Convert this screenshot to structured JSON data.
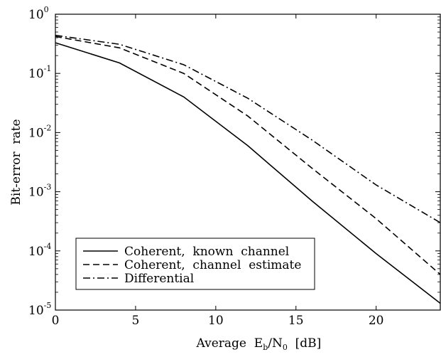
{
  "chart_data": {
    "type": "line",
    "xlabel": {
      "main": "Average  E",
      "sub1": "b",
      "mid": "/N",
      "sub2": "0",
      "end": "  [dB]"
    },
    "ylabel": "Bit-error  rate",
    "xlim": [
      0,
      24
    ],
    "ylim": [
      1e-05,
      1
    ],
    "yscale": "log",
    "grid": false,
    "legend_position": "bottom-left",
    "x_ticks": [
      {
        "value": 0,
        "label": "0"
      },
      {
        "value": 5,
        "label": "5"
      },
      {
        "value": 10,
        "label": "10"
      },
      {
        "value": 15,
        "label": "15"
      },
      {
        "value": 20,
        "label": "20"
      }
    ],
    "y_ticks": [
      {
        "value": 1,
        "base": "10",
        "exp": "0"
      },
      {
        "value": 0.1,
        "base": "10",
        "exp": "-1"
      },
      {
        "value": 0.01,
        "base": "10",
        "exp": "-2"
      },
      {
        "value": 0.001,
        "base": "10",
        "exp": "-3"
      },
      {
        "value": 0.0001,
        "base": "10",
        "exp": "-4"
      },
      {
        "value": 1e-05,
        "base": "10",
        "exp": "-5"
      }
    ],
    "series": [
      {
        "name": "Coherent,  known  channel",
        "dash": "solid",
        "x": [
          0,
          4,
          8,
          12,
          16,
          20,
          24
        ],
        "y": [
          0.33,
          0.15,
          0.04,
          0.006,
          0.0007,
          9e-05,
          1.3e-05
        ]
      },
      {
        "name": "Coherent,  channel  estimate",
        "dash": "dashed",
        "x": [
          0,
          4,
          8,
          12,
          16,
          20,
          24
        ],
        "y": [
          0.42,
          0.27,
          0.1,
          0.019,
          0.0025,
          0.00035,
          4e-05
        ]
      },
      {
        "name": "Differential",
        "dash": "dashdot",
        "x": [
          0,
          4,
          8,
          12,
          16,
          20,
          24
        ],
        "y": [
          0.44,
          0.31,
          0.14,
          0.038,
          0.0075,
          0.0013,
          0.0003
        ]
      }
    ]
  }
}
